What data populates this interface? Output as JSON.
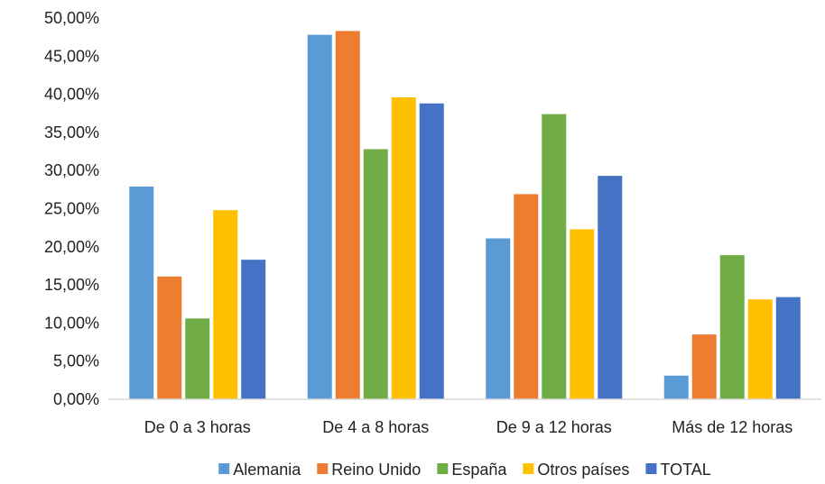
{
  "chart_data": {
    "type": "bar",
    "title": "",
    "xlabel": "",
    "ylabel": "",
    "categories": [
      "De 0 a 3 horas",
      "De 4 a 8 horas",
      "De 9 a 12 horas",
      "Más de 12 horas"
    ],
    "series": [
      {
        "name": "Alemania",
        "color": "#5B9BD5",
        "values": [
          27.9,
          47.8,
          21.1,
          3.1
        ]
      },
      {
        "name": "Reino Unido",
        "color": "#ED7D31",
        "values": [
          16.1,
          48.3,
          26.9,
          8.5
        ]
      },
      {
        "name": "España",
        "color": "#70AD47",
        "values": [
          10.6,
          32.8,
          37.4,
          18.9
        ]
      },
      {
        "name": "Otros países",
        "color": "#FFC000",
        "values": [
          24.8,
          39.6,
          22.3,
          13.1
        ]
      },
      {
        "name": "TOTAL",
        "color": "#4472C4",
        "values": [
          18.3,
          38.8,
          29.3,
          13.4
        ]
      }
    ],
    "ylim": [
      0,
      50
    ],
    "yticks": [
      "0,00%",
      "5,00%",
      "10,00%",
      "15,00%",
      "20,00%",
      "25,00%",
      "30,00%",
      "35,00%",
      "40,00%",
      "45,00%",
      "50,00%"
    ],
    "grid": false,
    "legend_position": "bottom"
  }
}
